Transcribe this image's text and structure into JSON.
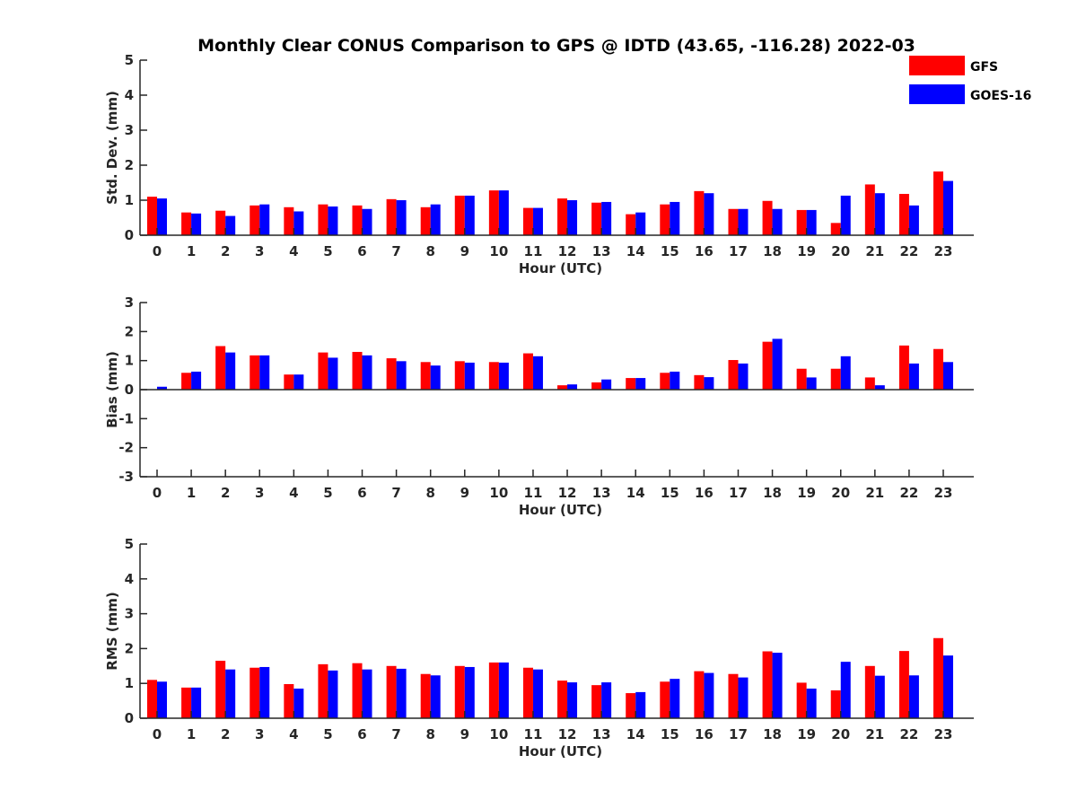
{
  "title": "Monthly Clear CONUS Comparison to GPS @ IDTD (43.65, -116.28) 2022-03",
  "legend": {
    "position": "top-right",
    "entries": [
      {
        "name": "GFS",
        "color": "#ff0000"
      },
      {
        "name": "GOES-16",
        "color": "#0000ff"
      }
    ]
  },
  "chart_data": [
    {
      "type": "bar",
      "xlabel": "Hour (UTC)",
      "ylabel": "Std. Dev. (mm)",
      "ylim": [
        0,
        5
      ],
      "yticks": [
        0,
        1,
        2,
        3,
        4,
        5
      ],
      "categories": [
        "0",
        "1",
        "2",
        "3",
        "4",
        "5",
        "6",
        "7",
        "8",
        "9",
        "10",
        "11",
        "12",
        "13",
        "14",
        "15",
        "16",
        "17",
        "18",
        "19",
        "20",
        "21",
        "22",
        "23"
      ],
      "series": [
        {
          "name": "GFS",
          "color": "#ff0000",
          "values": [
            1.1,
            0.65,
            0.7,
            0.85,
            0.8,
            0.88,
            0.85,
            1.03,
            0.8,
            1.13,
            1.28,
            0.78,
            1.05,
            0.93,
            0.6,
            0.88,
            1.26,
            0.75,
            0.98,
            0.72,
            0.35,
            1.45,
            1.18,
            1.82
          ]
        },
        {
          "name": "GOES-16",
          "color": "#0000ff",
          "values": [
            1.05,
            0.62,
            0.55,
            0.88,
            0.68,
            0.82,
            0.75,
            1.0,
            0.88,
            1.13,
            1.28,
            0.78,
            1.0,
            0.95,
            0.65,
            0.95,
            1.2,
            0.75,
            0.75,
            0.72,
            1.13,
            1.2,
            0.85,
            1.55
          ]
        }
      ]
    },
    {
      "type": "bar",
      "xlabel": "Hour (UTC)",
      "ylabel": "Bias (mm)",
      "ylim": [
        -3,
        3
      ],
      "yticks": [
        -3,
        -2,
        -1,
        0,
        1,
        2,
        3
      ],
      "categories": [
        "0",
        "1",
        "2",
        "3",
        "4",
        "5",
        "6",
        "7",
        "8",
        "9",
        "10",
        "11",
        "12",
        "13",
        "14",
        "15",
        "16",
        "17",
        "18",
        "19",
        "20",
        "21",
        "22",
        "23"
      ],
      "series": [
        {
          "name": "GFS",
          "color": "#ff0000",
          "values": [
            0.0,
            0.58,
            1.5,
            1.18,
            0.52,
            1.28,
            1.3,
            1.08,
            0.95,
            0.98,
            0.95,
            1.25,
            0.15,
            0.25,
            0.4,
            0.58,
            0.5,
            1.02,
            1.65,
            0.72,
            0.72,
            0.42,
            1.52,
            1.4
          ]
        },
        {
          "name": "GOES-16",
          "color": "#0000ff",
          "values": [
            0.1,
            0.62,
            1.28,
            1.18,
            0.52,
            1.1,
            1.18,
            0.98,
            0.83,
            0.93,
            0.93,
            1.15,
            0.18,
            0.35,
            0.4,
            0.62,
            0.43,
            0.9,
            1.75,
            0.42,
            1.15,
            0.15,
            0.9,
            0.95
          ]
        }
      ]
    },
    {
      "type": "bar",
      "xlabel": "Hour (UTC)",
      "ylabel": "RMS (mm)",
      "ylim": [
        0,
        5
      ],
      "yticks": [
        0,
        1,
        2,
        3,
        4,
        5
      ],
      "categories": [
        "0",
        "1",
        "2",
        "3",
        "4",
        "5",
        "6",
        "7",
        "8",
        "9",
        "10",
        "11",
        "12",
        "13",
        "14",
        "15",
        "16",
        "17",
        "18",
        "19",
        "20",
        "21",
        "22",
        "23"
      ],
      "series": [
        {
          "name": "GFS",
          "color": "#ff0000",
          "values": [
            1.1,
            0.88,
            1.65,
            1.45,
            0.98,
            1.55,
            1.58,
            1.5,
            1.27,
            1.5,
            1.6,
            1.45,
            1.08,
            0.95,
            0.72,
            1.05,
            1.35,
            1.27,
            1.92,
            1.02,
            0.8,
            1.5,
            1.93,
            2.3
          ]
        },
        {
          "name": "GOES-16",
          "color": "#0000ff",
          "values": [
            1.05,
            0.88,
            1.4,
            1.47,
            0.85,
            1.37,
            1.4,
            1.42,
            1.23,
            1.47,
            1.6,
            1.4,
            1.03,
            1.03,
            0.75,
            1.13,
            1.3,
            1.17,
            1.88,
            0.85,
            1.62,
            1.22,
            1.23,
            1.8
          ]
        }
      ]
    }
  ]
}
